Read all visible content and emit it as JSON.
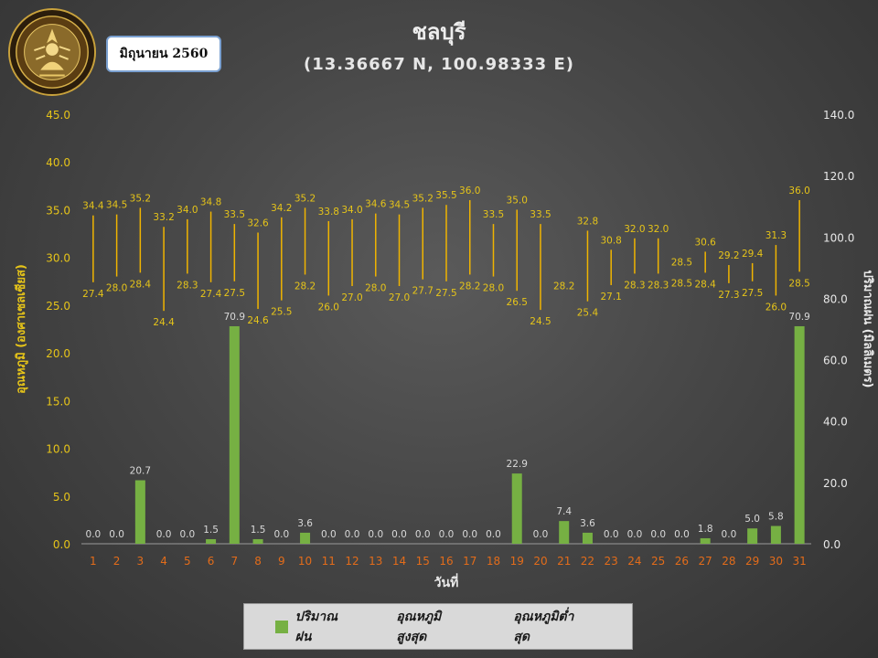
{
  "logo": {
    "text": "กรมอุตุนิยมวิทยา",
    "subtext": "METEOROLOGICAL DEPARTMENT"
  },
  "month_label": "มิถุนายน 2560",
  "title": "ชลบุรี",
  "subtitle": "(13.36667 N, 100.98333 E)",
  "colors": {
    "rain": "#76b043",
    "temp": "#f0b400",
    "label_yellow": "#e6c419",
    "day_orange": "#e36c1a",
    "rain_label": "#d9d9d9",
    "axis_text": "#e8e8e8"
  },
  "legend": {
    "rain": "ปริมาณฝน",
    "tmax": "อุณหภูมิสูงสุด",
    "tmin": "อุณหภูมิต่ำสุด"
  },
  "chart_data": {
    "type": "bar",
    "xlabel": "วันที่",
    "ylabel_left": "อุณหภูมิ (องศาเซลเซียส)",
    "ylabel_right": "ปริมาณฝน (มิลลิเมตร)",
    "ylim_left": [
      0,
      45
    ],
    "yticks_left": [
      "0.0",
      "5.0",
      "10.0",
      "15.0",
      "20.0",
      "25.0",
      "30.0",
      "35.0",
      "40.0",
      "45.0"
    ],
    "ylim_right": [
      0,
      140
    ],
    "yticks_right": [
      "0.0",
      "20.0",
      "40.0",
      "60.0",
      "80.0",
      "100.0",
      "120.0",
      "140.0"
    ],
    "categories": [
      "1",
      "2",
      "3",
      "4",
      "5",
      "6",
      "7",
      "8",
      "9",
      "10",
      "11",
      "12",
      "13",
      "14",
      "15",
      "16",
      "17",
      "18",
      "19",
      "20",
      "21",
      "22",
      "23",
      "24",
      "25",
      "26",
      "27",
      "28",
      "29",
      "30",
      "31"
    ],
    "series": [
      {
        "name": "ปริมาณฝน",
        "axis": "right",
        "values": [
          0.0,
          0.0,
          20.7,
          0.0,
          0.0,
          1.5,
          70.9,
          1.5,
          0.0,
          3.6,
          0.0,
          0.0,
          0.0,
          0.0,
          0.0,
          0.0,
          0.0,
          0.0,
          22.9,
          0.0,
          7.4,
          3.6,
          0.0,
          0.0,
          0.0,
          0.0,
          1.8,
          0.0,
          5.0,
          5.8,
          70.9
        ]
      },
      {
        "name": "อุณหภูมิสูงสุด",
        "axis": "left",
        "values": [
          34.4,
          34.5,
          35.2,
          33.2,
          34.0,
          34.8,
          33.5,
          32.6,
          34.2,
          35.2,
          33.8,
          34.0,
          34.6,
          34.5,
          35.2,
          35.5,
          36.0,
          33.5,
          35.0,
          33.5,
          null,
          32.8,
          30.8,
          32.0,
          32.0,
          28.5,
          30.6,
          29.2,
          29.4,
          31.3,
          36.0
        ]
      },
      {
        "name": "อุณหภูมิต่ำสุด",
        "axis": "left",
        "values": [
          27.4,
          28.0,
          28.4,
          24.4,
          28.3,
          27.4,
          27.5,
          24.6,
          25.5,
          28.2,
          26.0,
          27.0,
          28.0,
          27.0,
          27.7,
          27.5,
          28.2,
          28.0,
          26.5,
          24.5,
          28.2,
          25.4,
          27.1,
          28.3,
          28.3,
          28.5,
          28.4,
          27.3,
          27.5,
          26.0,
          28.5
        ]
      }
    ]
  }
}
